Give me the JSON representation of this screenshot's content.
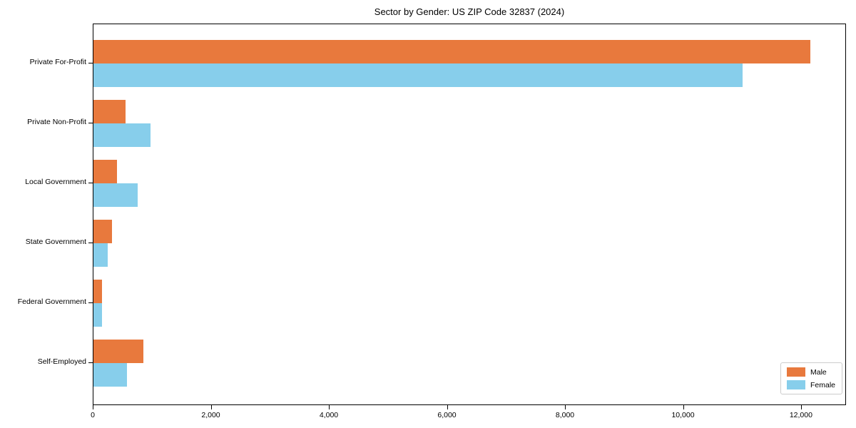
{
  "chart_data": {
    "type": "bar",
    "orientation": "horizontal",
    "title": "Sector by Gender: US ZIP Code 32837 (2024)",
    "categories": [
      "Private For-Profit",
      "Private Non-Profit",
      "Local Government",
      "State Government",
      "Federal Government",
      "Self-Employed"
    ],
    "series": [
      {
        "name": "Male",
        "color": "#e8793d",
        "values": [
          12150,
          545,
          400,
          310,
          150,
          850
        ]
      },
      {
        "name": "Female",
        "color": "#87ceeb",
        "values": [
          11000,
          970,
          750,
          245,
          150,
          570
        ]
      }
    ],
    "xlim": [
      0,
      12762
    ],
    "xticks": [
      0,
      2000,
      4000,
      6000,
      8000,
      10000,
      12000
    ],
    "xtick_labels": [
      "0",
      "2,000",
      "4,000",
      "6,000",
      "8,000",
      "10,000",
      "12,000"
    ],
    "xlabel": "",
    "ylabel": "",
    "grid": false,
    "legend": {
      "position": "lower right",
      "entries": [
        "Male",
        "Female"
      ]
    }
  }
}
